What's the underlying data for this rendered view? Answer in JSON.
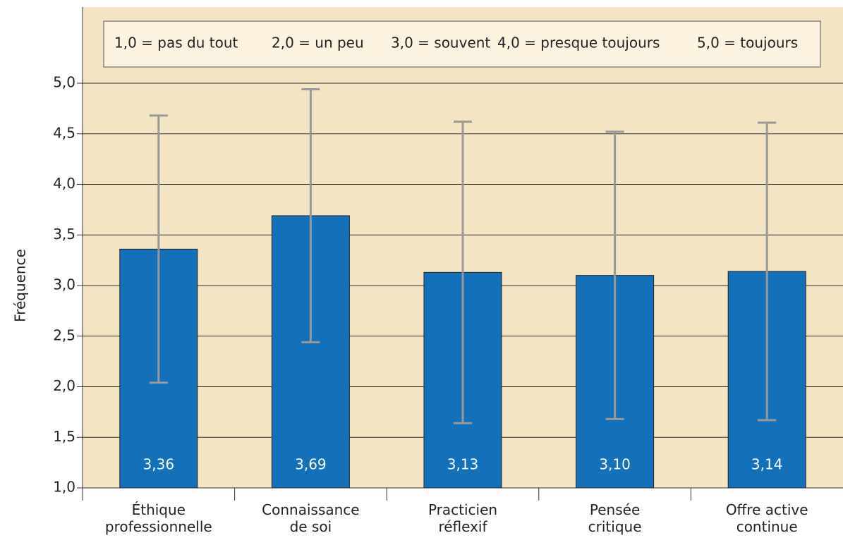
{
  "chart_data": {
    "type": "bar",
    "ylabel": "Fréquence",
    "annotations": [
      "1,0 = pas du tout",
      "2,0 = un peu",
      "3,0 = souvent",
      "4,0 = presque toujours",
      "5,0 = toujours"
    ],
    "categories": [
      "Éthique\nprofessionnelle",
      "Connaissance\nde soi",
      "Practicien\nréflexif",
      "Pensée\ncritique",
      "Offre active\ncontinue"
    ],
    "values": [
      3.36,
      3.69,
      3.13,
      3.1,
      3.14
    ],
    "value_labels": [
      "3,36",
      "3,69",
      "3,13",
      "3,10",
      "3,14"
    ],
    "errors": [
      1.32,
      1.25,
      1.49,
      1.42,
      1.47
    ],
    "color": "#1570ba",
    "error_color": "#999999",
    "ylim": [
      1,
      5
    ],
    "yticks": [
      {
        "value": 1,
        "label": "1,0"
      },
      {
        "value": 1.5,
        "label": "1,5"
      },
      {
        "value": 2,
        "label": "2,0"
      },
      {
        "value": 2.5,
        "label": "2,5"
      },
      {
        "value": 3,
        "label": "3,0"
      },
      {
        "value": 3.5,
        "label": "3,5"
      },
      {
        "value": 4,
        "label": "4,0"
      },
      {
        "value": 4.5,
        "label": "4,5"
      },
      {
        "value": 5,
        "label": "5,0"
      }
    ],
    "grid": true
  }
}
